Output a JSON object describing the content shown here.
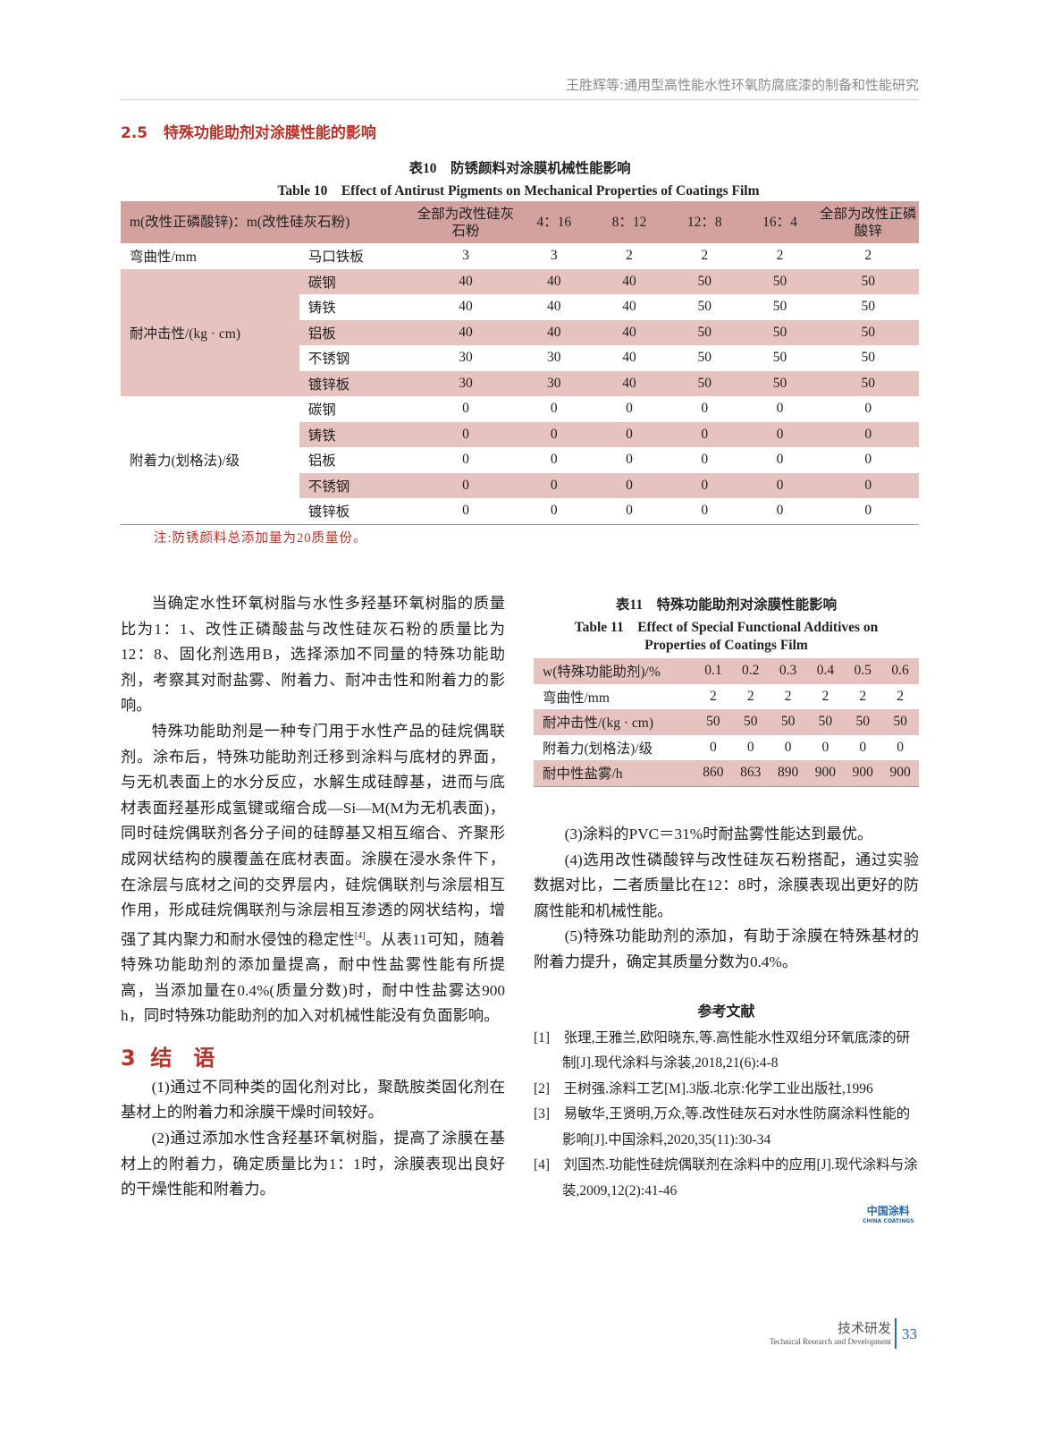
{
  "header": {
    "running_title": "王胜辉等:通用型高性能水性环氧防腐底漆的制备和性能研究"
  },
  "section_2_5": {
    "number": "2.5",
    "title": "特殊功能助剂对涂膜性能的影响"
  },
  "table10": {
    "caption_cn": "表10　防锈颜料对涂膜机械性能影响",
    "caption_en": "Table 10　Effect of Antirust Pigments on Mechanical Properties of Coatings Film",
    "header_label": "m(改性正磷酸锌)：m(改性硅灰石粉)",
    "columns": [
      "全部为改性硅灰石粉",
      "4：16",
      "8：12",
      "12：8",
      "16：4",
      "全部为改性正磷酸锌"
    ],
    "groups": [
      {
        "label": "弯曲性/mm",
        "rows": [
          {
            "sub": "马口铁板",
            "values": [
              "3",
              "3",
              "2",
              "2",
              "2",
              "2"
            ]
          }
        ]
      },
      {
        "label": "耐冲击性/(kg · cm)",
        "rows": [
          {
            "sub": "碳钢",
            "values": [
              "40",
              "40",
              "40",
              "50",
              "50",
              "50"
            ]
          },
          {
            "sub": "铸铁",
            "values": [
              "40",
              "40",
              "40",
              "50",
              "50",
              "50"
            ]
          },
          {
            "sub": "铝板",
            "values": [
              "40",
              "40",
              "40",
              "50",
              "50",
              "50"
            ]
          },
          {
            "sub": "不锈钢",
            "values": [
              "30",
              "30",
              "40",
              "50",
              "50",
              "50"
            ]
          },
          {
            "sub": "镀锌板",
            "values": [
              "30",
              "30",
              "40",
              "50",
              "50",
              "50"
            ]
          }
        ]
      },
      {
        "label": "附着力(划格法)/级",
        "rows": [
          {
            "sub": "碳钢",
            "values": [
              "0",
              "0",
              "0",
              "0",
              "0",
              "0"
            ]
          },
          {
            "sub": "铸铁",
            "values": [
              "0",
              "0",
              "0",
              "0",
              "0",
              "0"
            ]
          },
          {
            "sub": "铝板",
            "values": [
              "0",
              "0",
              "0",
              "0",
              "0",
              "0"
            ]
          },
          {
            "sub": "不锈钢",
            "values": [
              "0",
              "0",
              "0",
              "0",
              "0",
              "0"
            ]
          },
          {
            "sub": "镀锌板",
            "values": [
              "0",
              "0",
              "0",
              "0",
              "0",
              "0"
            ]
          }
        ]
      }
    ],
    "note": "注:防锈颜料总添加量为20质量份。"
  },
  "left_text": {
    "p1": "当确定水性环氧树脂与水性多羟基环氧树脂的质量比为1：1、改性正磷酸盐与改性硅灰石粉的质量比为12：8、固化剂选用B，选择添加不同量的特殊功能助剂，考察其对耐盐雾、附着力、耐冲击性和附着力的影响。",
    "p2a": "特殊功能助剂是一种专门用于水性产品的硅烷偶联剂。涂布后，特殊功能助剂迁移到涂料与底材的界面，与无机表面上的水分反应，水解生成硅醇基，进而与底材表面羟基形成氢键或缩合成—Si—M(M为无机表面)，同时硅烷偶联剂各分子间的硅醇基又相互缩合、齐聚形成网状结构的膜覆盖在底材表面。涂膜在浸水条件下，在涂层与底材之间的交界层内，硅烷偶联剂与涂层相互作用，形成硅烷偶联剂与涂层相互渗透的网状结构，增强了其内聚力和耐水侵蚀的稳定性",
    "p2_cite": "[4]",
    "p2b": "。从表11可知，随着特殊功能助剂的添加量提高，耐中性盐雾性能有所提高，当添加量在0.4%(质量分数)时，耐中性盐雾达900 h，同时特殊功能助剂的加入对机械性能没有负面影响。"
  },
  "section_3": {
    "number": "3",
    "title": "结　语"
  },
  "conclusions": [
    "(1)通过不同种类的固化剂对比，聚酰胺类固化剂在基材上的附着力和涂膜干燥时间较好。",
    "(2)通过添加水性含羟基环氧树脂，提高了涂膜在基材上的附着力，确定质量比为1：1时，涂膜表现出良好的干燥性能和附着力。",
    "(3)涂料的PVC＝31%时耐盐雾性能达到最优。",
    "(4)选用改性磷酸锌与改性硅灰石粉搭配，通过实验数据对比，二者质量比在12：8时，涂膜表现出更好的防腐性能和机械性能。",
    "(5)特殊功能助剂的添加，有助于涂膜在特殊基材的附着力提升，确定其质量分数为0.4%。"
  ],
  "table11": {
    "caption_cn": "表11　特殊功能助剂对涂膜性能影响",
    "caption_en1": "Table 11　Effect of Special Functional Additives on",
    "caption_en2": "Properties of Coatings Film",
    "header_label": "w(特殊功能助剂)/%",
    "columns": [
      "0.1",
      "0.2",
      "0.3",
      "0.4",
      "0.5",
      "0.6"
    ],
    "rows": [
      {
        "label": "弯曲性/mm",
        "values": [
          "2",
          "2",
          "2",
          "2",
          "2",
          "2"
        ]
      },
      {
        "label": "耐冲击性/(kg · cm)",
        "values": [
          "50",
          "50",
          "50",
          "50",
          "50",
          "50"
        ]
      },
      {
        "label": "附着力(划格法)/级",
        "values": [
          "0",
          "0",
          "0",
          "0",
          "0",
          "0"
        ]
      },
      {
        "label": "耐中性盐雾/h",
        "values": [
          "860",
          "863",
          "890",
          "900",
          "900",
          "900"
        ]
      }
    ]
  },
  "references": {
    "title": "参考文献",
    "items": [
      "[1]　张理,王雅兰,欧阳晓东,等.高性能水性双组分环氧底漆的研制[J].现代涂料与涂装,2018,21(6):4-8",
      "[2]　王树强.涂料工艺[M].3版.北京:化学工业出版社,1996",
      "[3]　易敏华,王贤明,万众,等.改性硅灰石对水性防腐涂料性能的影响[J].中国涂料,2020,35(11):30-34",
      "[4]　刘国杰.功能性硅烷偶联剂在涂料中的应用[J].现代涂料与涂装,2009,12(2):41-46"
    ]
  },
  "logo": {
    "cn": "中国涂料",
    "en": "CHINA COATINGS"
  },
  "footer": {
    "section_cn": "技术研发",
    "section_en": "Technical Research and Development",
    "page": "33"
  },
  "colors": {
    "accent": "#b5322a",
    "table_header": "#d3a29e",
    "table_shade": "#e7c3bf",
    "logo": "#2a6aa8"
  }
}
